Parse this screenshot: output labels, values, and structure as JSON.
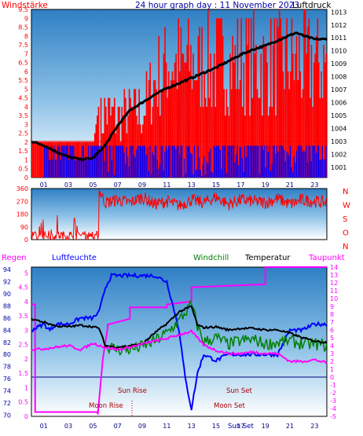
{
  "header": {
    "left_label": "Windstärke",
    "title": "24 hour graph day : 11 November 2023",
    "right_label": "Luftdruck"
  },
  "colors": {
    "wind": "#ff0000",
    "gust": "#0000ff",
    "pressure": "#000000",
    "humidity": "#0000ff",
    "dewpoint": "#ff00ff",
    "windchill": "#008000",
    "temperature": "#000000",
    "moon_text": "#aa0000"
  },
  "legend": {
    "regen": "Regen",
    "luftfeuchte": "Luftfeuchte",
    "windchill": "Windchill",
    "temperatur": "Temperatur",
    "taupunkt": "Taupunkt"
  },
  "compass_letters": [
    "N",
    "W",
    "S",
    "O",
    "N"
  ],
  "events": {
    "sun_rise": "Sun Rise",
    "sun_set": "Sun Set",
    "moon_rise": "Moon Rise",
    "moon_set": "Moon Set",
    "sun_set_bottom": "Sun Set"
  },
  "chart_data": [
    {
      "type": "bar",
      "name": "wind",
      "x_ticks": [
        "01",
        "03",
        "05",
        "07",
        "09",
        "11",
        "13",
        "15",
        "17",
        "19",
        "21",
        "23"
      ],
      "y_ticks": [
        "0",
        "0.5",
        "1",
        "1.5",
        "2",
        "2.5",
        "3",
        "3.5",
        "4",
        "4.5",
        "5",
        "5.5",
        "6",
        "6.5",
        "7",
        "7.5",
        "8",
        "8.5",
        "9",
        "9.5"
      ],
      "ylim": [
        0,
        9.5
      ],
      "y2_ticks": [
        "1001",
        "1002",
        "1003",
        "1004",
        "1005",
        "1006",
        "1007",
        "1008",
        "1009",
        "1010",
        "1011",
        "1012",
        "1013"
      ],
      "y2lim": [
        1000.2,
        1013.2
      ],
      "wind_envelope": [
        [
          0,
          1.8
        ],
        [
          1,
          1.8
        ],
        [
          2,
          1.8
        ],
        [
          3,
          1.8
        ],
        [
          4,
          1.8
        ],
        [
          5,
          1.8
        ],
        [
          5.5,
          4.5
        ],
        [
          6,
          5.5
        ],
        [
          7,
          5.0
        ],
        [
          8,
          5.5
        ],
        [
          9,
          5.5
        ],
        [
          10,
          8.0
        ],
        [
          11,
          9.5
        ],
        [
          12,
          9.5
        ],
        [
          13,
          9.5
        ],
        [
          14,
          9.5
        ],
        [
          15,
          9.5
        ],
        [
          16,
          9.5
        ],
        [
          17,
          9.5
        ],
        [
          18,
          9.5
        ],
        [
          19,
          9.5
        ],
        [
          20,
          9.5
        ],
        [
          21,
          9.5
        ],
        [
          22,
          9.5
        ],
        [
          23,
          9.5
        ],
        [
          24,
          9.5
        ]
      ],
      "pressure": [
        [
          0,
          1003.0
        ],
        [
          1,
          1002.7
        ],
        [
          2,
          1002.2
        ],
        [
          3,
          1001.8
        ],
        [
          4,
          1001.6
        ],
        [
          5,
          1001.7
        ],
        [
          6,
          1002.7
        ],
        [
          7,
          1004.2
        ],
        [
          8,
          1005.4
        ],
        [
          9,
          1006.0
        ],
        [
          10,
          1006.6
        ],
        [
          11,
          1007.1
        ],
        [
          12,
          1007.5
        ],
        [
          13,
          1007.9
        ],
        [
          14,
          1008.3
        ],
        [
          15,
          1008.7
        ],
        [
          16,
          1009.2
        ],
        [
          17,
          1009.7
        ],
        [
          18,
          1010.1
        ],
        [
          19,
          1010.4
        ],
        [
          20,
          1010.8
        ],
        [
          21,
          1011.2
        ],
        [
          21.5,
          1011.4
        ],
        [
          22,
          1011.2
        ],
        [
          23,
          1010.9
        ],
        [
          24,
          1010.9
        ]
      ]
    },
    {
      "type": "line",
      "name": "wind-direction",
      "y_ticks": [
        "0",
        "90",
        "180",
        "270",
        "360"
      ],
      "ylim": [
        0,
        360
      ],
      "x": [
        0,
        0.5,
        1,
        1.5,
        2,
        2.5,
        3,
        3.5,
        4,
        4.5,
        5,
        5.5,
        6,
        7,
        8,
        9,
        10,
        11,
        12,
        13,
        14,
        15,
        16,
        17,
        18,
        19,
        20,
        21,
        22,
        23,
        24
      ],
      "values": [
        10,
        70,
        150,
        40,
        200,
        60,
        30,
        150,
        20,
        50,
        10,
        350,
        260,
        280,
        260,
        300,
        250,
        270,
        240,
        280,
        260,
        300,
        250,
        280,
        270,
        260,
        290,
        250,
        280,
        270,
        260
      ]
    },
    {
      "type": "line",
      "name": "humidity-temperature",
      "x_ticks": [
        "01",
        "03",
        "05",
        "07",
        "09",
        "11",
        "13",
        "15",
        "17",
        "19",
        "21",
        "23"
      ],
      "y_ticks": [
        "70",
        "72",
        "74",
        "76",
        "78",
        "80",
        "82",
        "84",
        "86",
        "88",
        "90",
        "92",
        "94"
      ],
      "ylim": [
        69.8,
        94.4
      ],
      "y2_ticks": [
        "-5",
        "-4",
        "-3",
        "-2",
        "-1",
        "0",
        "1",
        "2",
        "3",
        "4",
        "5",
        "6",
        "7",
        "8",
        "9",
        "10",
        "11",
        "12",
        "13",
        "14"
      ],
      "y2lim": [
        -5,
        14
      ],
      "y3_ticks": [
        "0",
        "0.5",
        "1",
        "1.5",
        "2",
        "2.5",
        "3",
        "3.5",
        "4",
        "4.5",
        "5"
      ],
      "y3lim": [
        0,
        5.2
      ],
      "series": [
        {
          "name": "Luftfeuchte",
          "x": [
            0,
            1,
            1.5,
            2,
            3,
            4,
            5,
            5.5,
            6,
            6.5,
            7,
            8,
            9,
            10,
            11,
            11.5,
            12,
            12.5,
            13,
            13.5,
            14,
            15,
            16,
            17,
            18,
            19,
            20,
            21,
            22,
            23,
            24
          ],
          "values": [
            84,
            85,
            84,
            85,
            85,
            86,
            86,
            87,
            91,
            93,
            93,
            93,
            93,
            93,
            92,
            88,
            84,
            76,
            71,
            77,
            80,
            79,
            80,
            80,
            80,
            80,
            80,
            84,
            84,
            85,
            85
          ]
        },
        {
          "name": "Temperatur",
          "x": [
            0,
            1,
            2,
            3,
            4,
            5,
            5.5,
            6,
            7,
            8,
            9,
            10,
            11,
            12,
            13,
            13.5,
            14,
            15,
            16,
            17,
            18,
            19,
            20,
            21,
            22,
            23,
            24
          ],
          "values": [
            7.4,
            7.0,
            6.5,
            6.4,
            6.6,
            6.4,
            6.2,
            4.0,
            3.8,
            4.0,
            4.2,
            5.6,
            6.8,
            8.3,
            9.0,
            6.6,
            6.3,
            6.4,
            6.0,
            6.2,
            6.2,
            6.0,
            6.0,
            5.6,
            5.0,
            4.6,
            4.4
          ]
        },
        {
          "name": "Windchill",
          "x": [
            6,
            7,
            8,
            9,
            10,
            11,
            12,
            13,
            13.5,
            14,
            15,
            16,
            17,
            18,
            19,
            20,
            21,
            22,
            23,
            24
          ],
          "values": [
            4.0,
            3.5,
            3.5,
            3.9,
            4.6,
            5.6,
            7.2,
            9.2,
            6.5,
            4.5,
            5.0,
            4.2,
            4.6,
            4.8,
            4.2,
            4.4,
            4.6,
            4.2,
            4.2,
            4.0
          ]
        },
        {
          "name": "Taupunkt",
          "x": [
            0,
            1,
            2,
            3,
            4,
            5,
            6,
            7,
            8,
            9,
            10,
            11,
            12,
            13,
            14,
            15,
            16,
            17,
            18,
            19,
            20,
            21,
            22,
            23,
            24
          ],
          "values": [
            3.5,
            3.6,
            3.8,
            4.0,
            3.5,
            4.3,
            3.8,
            3.5,
            3.8,
            4.2,
            4.6,
            4.9,
            5.4,
            5.8,
            4.1,
            3.4,
            3.0,
            3.0,
            3.2,
            3.0,
            3.0,
            2.0,
            2.0,
            2.2,
            1.8
          ]
        },
        {
          "name": "Regen",
          "x": [
            0,
            0.3,
            0.3,
            5.3,
            5.4,
            5.8,
            6.2,
            6.2,
            8.0,
            8.0,
            11.0,
            11.0,
            13.0,
            13.0,
            19.0,
            19.0,
            24.0
          ],
          "values": [
            3.9,
            3.9,
            0.15,
            0.15,
            0.1,
            2.0,
            3.1,
            3.2,
            3.4,
            3.8,
            3.8,
            3.9,
            4.0,
            4.5,
            4.6,
            5.2,
            5.2
          ]
        }
      ]
    }
  ]
}
